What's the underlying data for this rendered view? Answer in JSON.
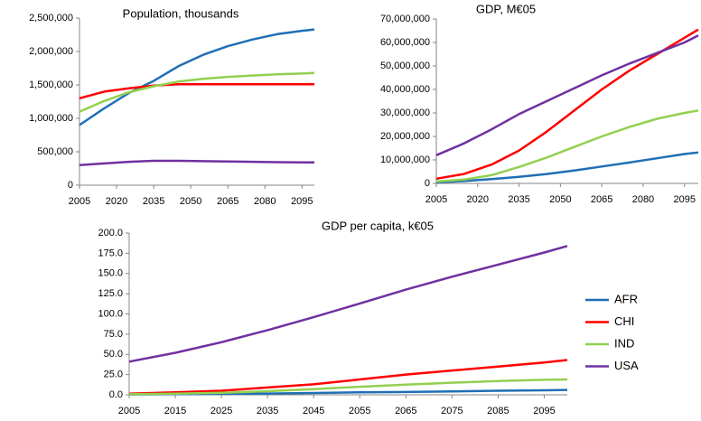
{
  "chart_data": [
    {
      "type": "line",
      "title": "Population, thousands",
      "x": [
        2005,
        2015,
        2025,
        2035,
        2045,
        2055,
        2065,
        2075,
        2085,
        2095,
        2100
      ],
      "xlim": [
        2005,
        2100
      ],
      "xticks": [
        2005,
        2020,
        2035,
        2050,
        2065,
        2080,
        2095
      ],
      "ylim": [
        0,
        2500000
      ],
      "yticks": [
        0,
        {
          "value": 500000,
          "label": "500,000"
        },
        {
          "value": 1000000,
          "label": "1,000,000"
        },
        {
          "value": 1500000,
          "label": "1,500,000"
        },
        {
          "value": 2000000,
          "label": "2,000,000"
        },
        {
          "value": 2500000,
          "label": "2,500,000"
        }
      ],
      "series": [
        {
          "name": "AFR",
          "color": "#1f6fb5",
          "values": [
            900000,
            1150000,
            1380000,
            1560000,
            1780000,
            1950000,
            2080000,
            2180000,
            2260000,
            2310000,
            2330000
          ]
        },
        {
          "name": "CHI",
          "color": "#ff0000",
          "values": [
            1300000,
            1400000,
            1450000,
            1490000,
            1510000,
            1510000,
            1510000,
            1510000,
            1510000,
            1510000,
            1510000
          ]
        },
        {
          "name": "IND",
          "color": "#92d050",
          "values": [
            1100000,
            1260000,
            1390000,
            1480000,
            1550000,
            1590000,
            1620000,
            1640000,
            1660000,
            1670000,
            1680000
          ]
        },
        {
          "name": "USA",
          "color": "#7030a0",
          "values": [
            300000,
            325000,
            350000,
            365000,
            365000,
            360000,
            355000,
            350000,
            345000,
            340000,
            340000
          ]
        }
      ]
    },
    {
      "type": "line",
      "title": "GDP, M€05",
      "x": [
        2005,
        2015,
        2025,
        2035,
        2045,
        2055,
        2065,
        2075,
        2085,
        2095,
        2100
      ],
      "xlim": [
        2005,
        2100
      ],
      "xticks": [
        2005,
        2020,
        2035,
        2050,
        2065,
        2080,
        2095
      ],
      "ylim": [
        0,
        70000000
      ],
      "yticks": [
        0,
        {
          "value": 10000000,
          "label": "10,000,000"
        },
        {
          "value": 20000000,
          "label": "20,000,000"
        },
        {
          "value": 30000000,
          "label": "30,000,000"
        },
        {
          "value": 40000000,
          "label": "40,000,000"
        },
        {
          "value": 50000000,
          "label": "50,000,000"
        },
        {
          "value": 60000000,
          "label": "60,000,000"
        },
        {
          "value": 70000000,
          "label": "70,000,000"
        }
      ],
      "series": [
        {
          "name": "AFR",
          "color": "#1f6fb5",
          "values": [
            500000,
            1000000,
            1800000,
            2800000,
            4000000,
            5500000,
            7200000,
            8900000,
            10700000,
            12500000,
            13200000
          ]
        },
        {
          "name": "CHI",
          "color": "#ff0000",
          "values": [
            2000000,
            4000000,
            8000000,
            14000000,
            22000000,
            31000000,
            40000000,
            48000000,
            55000000,
            62000000,
            65500000
          ]
        },
        {
          "name": "IND",
          "color": "#92d050",
          "values": [
            800000,
            1600000,
            3500000,
            7000000,
            11000000,
            15500000,
            20000000,
            24000000,
            27500000,
            30000000,
            31000000
          ]
        },
        {
          "name": "USA",
          "color": "#7030a0",
          "values": [
            12000000,
            17000000,
            23000000,
            29500000,
            35000000,
            40500000,
            46000000,
            51000000,
            55500000,
            60000000,
            63000000
          ]
        }
      ]
    },
    {
      "type": "line",
      "title": "GDP per capita, k€05",
      "x": [
        2005,
        2015,
        2025,
        2035,
        2045,
        2055,
        2065,
        2075,
        2085,
        2095,
        2100
      ],
      "xlim": [
        2005,
        2100
      ],
      "xticks": [
        2005,
        2015,
        2025,
        2035,
        2045,
        2055,
        2065,
        2075,
        2085,
        2095
      ],
      "ylim": [
        0,
        200
      ],
      "yticks": [
        {
          "value": 0,
          "label": "0.0"
        },
        {
          "value": 25,
          "label": "25.0"
        },
        {
          "value": 50,
          "label": "50.0"
        },
        {
          "value": 75,
          "label": "75.0"
        },
        {
          "value": 100,
          "label": "100.0"
        },
        {
          "value": 125,
          "label": "125.0"
        },
        {
          "value": 150,
          "label": "150.0"
        },
        {
          "value": 175,
          "label": "175.0"
        },
        {
          "value": 200,
          "label": "200.0"
        }
      ],
      "series": [
        {
          "name": "AFR",
          "color": "#1f6fb5",
          "values": [
            0.5,
            0.8,
            1.2,
            1.6,
            2.2,
            3,
            3.5,
            4.2,
            5,
            5.6,
            6
          ]
        },
        {
          "name": "CHI",
          "color": "#ff0000",
          "values": [
            1.5,
            3,
            5,
            9,
            13,
            19,
            25,
            30,
            35,
            40,
            43
          ]
        },
        {
          "name": "IND",
          "color": "#92d050",
          "values": [
            0.7,
            1.5,
            2.5,
            4.5,
            7,
            10,
            12.5,
            15,
            17,
            18.5,
            19
          ]
        },
        {
          "name": "USA",
          "color": "#7030a0",
          "values": [
            41,
            52,
            65,
            80,
            96,
            113,
            130,
            146,
            161,
            176,
            184
          ]
        }
      ]
    }
  ]
}
